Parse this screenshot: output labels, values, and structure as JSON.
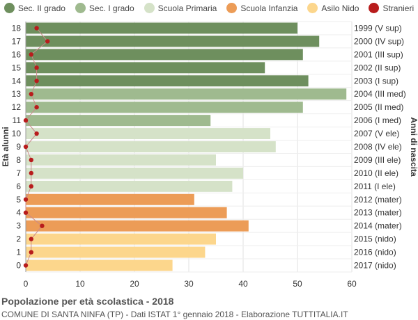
{
  "chart_data": {
    "type": "bar",
    "orientation": "horizontal",
    "ages": [
      "18",
      "17",
      "16",
      "15",
      "14",
      "13",
      "12",
      "11",
      "10",
      "9",
      "8",
      "7",
      "6",
      "5",
      "4",
      "3",
      "2",
      "1",
      "0"
    ],
    "birth_years": [
      "1999 (V sup)",
      "2000 (IV sup)",
      "2001 (III sup)",
      "2002 (II sup)",
      "2003 (I sup)",
      "2004 (III med)",
      "2005 (II med)",
      "2006 (I med)",
      "2007 (V ele)",
      "2008 (IV ele)",
      "2009 (III ele)",
      "2010 (II ele)",
      "2011 (I ele)",
      "2012 (mater)",
      "2013 (mater)",
      "2014 (mater)",
      "2015 (nido)",
      "2016 (nido)",
      "2017 (nido)"
    ],
    "values": [
      50,
      54,
      51,
      44,
      52,
      59,
      51,
      34,
      45,
      46,
      35,
      40,
      38,
      31,
      37,
      41,
      35,
      33,
      27
    ],
    "groups": [
      "sec2",
      "sec2",
      "sec2",
      "sec2",
      "sec2",
      "sec1",
      "sec1",
      "sec1",
      "prim",
      "prim",
      "prim",
      "prim",
      "prim",
      "inf",
      "inf",
      "inf",
      "nido",
      "nido",
      "nido"
    ],
    "stranieri": [
      2,
      4,
      1,
      2,
      2,
      1,
      2,
      0,
      2,
      0,
      1,
      1,
      1,
      0,
      0,
      3,
      1,
      1,
      0
    ],
    "series": [
      {
        "key": "sec2",
        "name": "Sec. II grado",
        "color": "#6e8f5e"
      },
      {
        "key": "sec1",
        "name": "Sec. I grado",
        "color": "#9fba8f"
      },
      {
        "key": "prim",
        "name": "Scuola Primaria",
        "color": "#d5e2c8"
      },
      {
        "key": "inf",
        "name": "Scuola Infanzia",
        "color": "#ec9c57"
      },
      {
        "key": "nido",
        "name": "Asilo Nido",
        "color": "#fcd68c"
      },
      {
        "key": "str",
        "name": "Stranieri",
        "color": "#b81c1c"
      }
    ],
    "xlim": [
      0,
      60
    ],
    "xticks": [
      0,
      10,
      20,
      30,
      40,
      50,
      60
    ],
    "ylabel_left": "Età alunni",
    "ylabel_right": "Anni di nascita",
    "grid": true,
    "legend_position": "top"
  },
  "title": "Popolazione per età scolastica - 2018",
  "subtitle": "COMUNE DI SANTA NINFA (TP) - Dati ISTAT 1° gennaio 2018 - Elaborazione TUTTITALIA.IT"
}
